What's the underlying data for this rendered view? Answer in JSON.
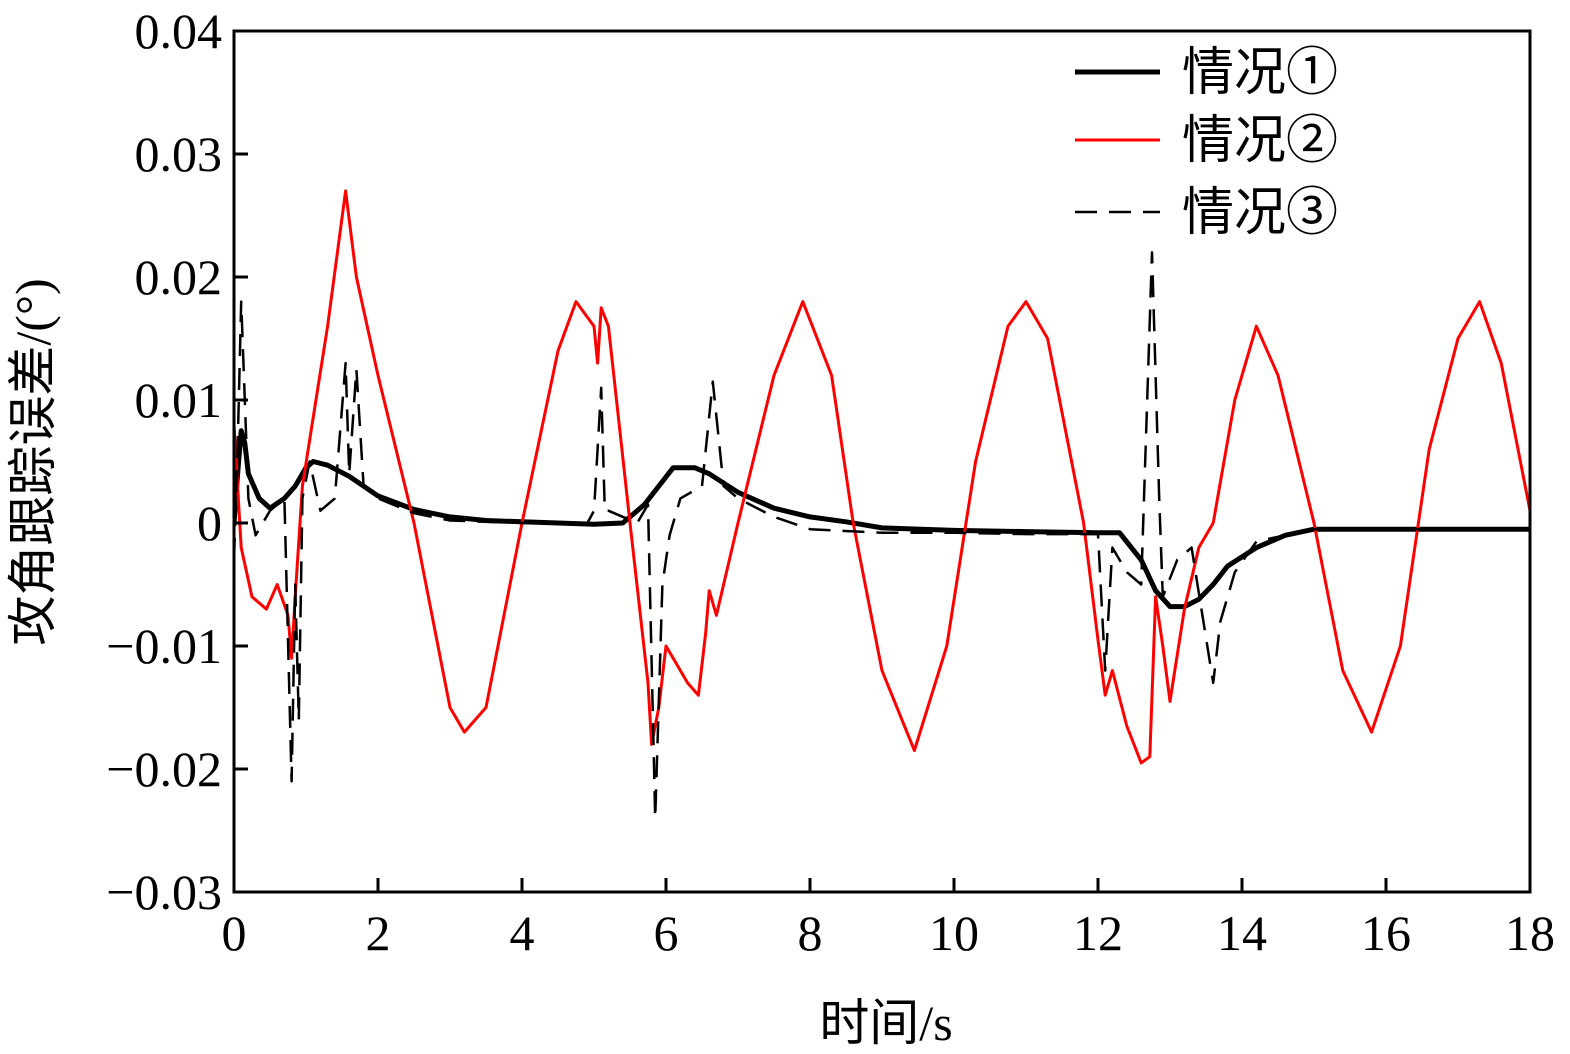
{
  "chart_data": {
    "type": "line",
    "xlabel": "时间/s",
    "ylabel": "攻角跟踪误差/(°)",
    "xlim": [
      0,
      18
    ],
    "ylim": [
      -0.03,
      0.04
    ],
    "grid": false,
    "legend_position": "top-right",
    "x_ticks": [
      "0",
      "2",
      "4",
      "6",
      "8",
      "10",
      "12",
      "14",
      "16",
      "18"
    ],
    "y_ticks": [
      "−0.03",
      "−0.02",
      "−0.01",
      "0",
      "0.01",
      "0.02",
      "0.03",
      "0.04"
    ],
    "series": [
      {
        "name": "情况①",
        "color": "#000000",
        "style": "solid-thick",
        "points": [
          [
            0,
            0
          ],
          [
            0.05,
            0.004
          ],
          [
            0.1,
            0.0075
          ],
          [
            0.15,
            0.0065
          ],
          [
            0.2,
            0.004
          ],
          [
            0.35,
            0.002
          ],
          [
            0.5,
            0.0012
          ],
          [
            0.7,
            0.002
          ],
          [
            0.85,
            0.003
          ],
          [
            1.0,
            0.0045
          ],
          [
            1.1,
            0.005
          ],
          [
            1.3,
            0.0047
          ],
          [
            1.6,
            0.0038
          ],
          [
            2.0,
            0.0022
          ],
          [
            2.5,
            0.0011
          ],
          [
            3.0,
            0.0005
          ],
          [
            3.5,
            0.0002
          ],
          [
            4.0,
            0.0001
          ],
          [
            4.5,
            0
          ],
          [
            5.0,
            -0.0001
          ],
          [
            5.4,
            0
          ],
          [
            5.7,
            0.0015
          ],
          [
            5.9,
            0.003
          ],
          [
            6.1,
            0.0045
          ],
          [
            6.4,
            0.0045
          ],
          [
            6.6,
            0.004
          ],
          [
            7.0,
            0.0025
          ],
          [
            7.5,
            0.0012
          ],
          [
            8.0,
            0.0005
          ],
          [
            8.5,
            0.0001
          ],
          [
            9.0,
            -0.0004
          ],
          [
            10,
            -0.0006
          ],
          [
            11,
            -0.0007
          ],
          [
            12,
            -0.0008
          ],
          [
            12.3,
            -0.0008
          ],
          [
            12.6,
            -0.003
          ],
          [
            12.8,
            -0.0055
          ],
          [
            13.0,
            -0.0068
          ],
          [
            13.2,
            -0.0068
          ],
          [
            13.4,
            -0.0062
          ],
          [
            13.6,
            -0.005
          ],
          [
            13.8,
            -0.0035
          ],
          [
            14.2,
            -0.002
          ],
          [
            14.6,
            -0.001
          ],
          [
            15,
            -0.0005
          ],
          [
            16,
            -0.0005
          ],
          [
            17,
            -0.0005
          ],
          [
            18,
            -0.0005
          ]
        ]
      },
      {
        "name": "情况②",
        "color": "#ff0000",
        "style": "solid",
        "points": [
          [
            0,
            0.008
          ],
          [
            0.1,
            -0.002
          ],
          [
            0.25,
            -0.006
          ],
          [
            0.45,
            -0.007
          ],
          [
            0.6,
            -0.005
          ],
          [
            0.75,
            -0.0075
          ],
          [
            0.8,
            -0.011
          ],
          [
            0.85,
            -0.006
          ],
          [
            0.95,
            0.003
          ],
          [
            1.3,
            0.016
          ],
          [
            1.55,
            0.027
          ],
          [
            1.7,
            0.02
          ],
          [
            2.0,
            0.012
          ],
          [
            2.5,
            0
          ],
          [
            3.0,
            -0.015
          ],
          [
            3.2,
            -0.017
          ],
          [
            3.5,
            -0.015
          ],
          [
            4.0,
            0
          ],
          [
            4.5,
            0.014
          ],
          [
            4.75,
            0.018
          ],
          [
            5.0,
            0.016
          ],
          [
            5.05,
            0.013
          ],
          [
            5.1,
            0.0175
          ],
          [
            5.2,
            0.016
          ],
          [
            5.5,
            0
          ],
          [
            5.75,
            -0.013
          ],
          [
            5.8,
            -0.018
          ],
          [
            5.9,
            -0.015
          ],
          [
            6.0,
            -0.01
          ],
          [
            6.1,
            -0.011
          ],
          [
            6.3,
            -0.013
          ],
          [
            6.45,
            -0.014
          ],
          [
            6.55,
            -0.009
          ],
          [
            6.6,
            -0.0055
          ],
          [
            6.7,
            -0.0075
          ],
          [
            7.0,
            0
          ],
          [
            7.5,
            0.012
          ],
          [
            7.9,
            0.018
          ],
          [
            8.3,
            0.012
          ],
          [
            8.6,
            0
          ],
          [
            9.0,
            -0.012
          ],
          [
            9.45,
            -0.0185
          ],
          [
            9.9,
            -0.01
          ],
          [
            10.3,
            0.005
          ],
          [
            10.75,
            0.016
          ],
          [
            11.0,
            0.018
          ],
          [
            11.3,
            0.015
          ],
          [
            11.8,
            0
          ],
          [
            12.0,
            -0.0095
          ],
          [
            12.1,
            -0.014
          ],
          [
            12.2,
            -0.012
          ],
          [
            12.4,
            -0.0165
          ],
          [
            12.6,
            -0.0195
          ],
          [
            12.72,
            -0.019
          ],
          [
            12.8,
            -0.006
          ],
          [
            12.9,
            -0.01
          ],
          [
            13.0,
            -0.0145
          ],
          [
            13.2,
            -0.007
          ],
          [
            13.4,
            -0.002
          ],
          [
            13.6,
            0
          ],
          [
            13.9,
            0.01
          ],
          [
            14.2,
            0.016
          ],
          [
            14.5,
            0.012
          ],
          [
            15.0,
            0
          ],
          [
            15.4,
            -0.012
          ],
          [
            15.8,
            -0.017
          ],
          [
            16.2,
            -0.01
          ],
          [
            16.6,
            0.006
          ],
          [
            17.0,
            0.015
          ],
          [
            17.3,
            0.018
          ],
          [
            17.6,
            0.013
          ],
          [
            18.0,
            0.001
          ]
        ]
      },
      {
        "name": "情况③",
        "color": "#000000",
        "style": "dashed",
        "points": [
          [
            0,
            -0.003
          ],
          [
            0.05,
            0.006
          ],
          [
            0.1,
            0.018
          ],
          [
            0.15,
            0.01
          ],
          [
            0.2,
            0.002
          ],
          [
            0.3,
            -0.001
          ],
          [
            0.5,
            0.001
          ],
          [
            0.7,
            0.002
          ],
          [
            0.8,
            -0.021
          ],
          [
            0.85,
            -0.005
          ],
          [
            0.9,
            -0.016
          ],
          [
            0.95,
            0.002
          ],
          [
            1.05,
            0.005
          ],
          [
            1.2,
            0.001
          ],
          [
            1.4,
            0.002
          ],
          [
            1.55,
            0.013
          ],
          [
            1.6,
            0.004
          ],
          [
            1.7,
            0.0125
          ],
          [
            1.8,
            0.003
          ],
          [
            2.0,
            0.002
          ],
          [
            2.5,
            0.0008
          ],
          [
            3.0,
            0.0002
          ],
          [
            4.0,
            0
          ],
          [
            4.9,
            -0.0001
          ],
          [
            5.0,
            0.001
          ],
          [
            5.1,
            0.011
          ],
          [
            5.15,
            0.001
          ],
          [
            5.2,
            0.001
          ],
          [
            5.6,
            0
          ],
          [
            5.75,
            0.0015
          ],
          [
            5.85,
            -0.024
          ],
          [
            5.95,
            -0.005
          ],
          [
            6.05,
            -0.001
          ],
          [
            6.2,
            0.002
          ],
          [
            6.5,
            0.003
          ],
          [
            6.65,
            0.0115
          ],
          [
            6.8,
            0.003
          ],
          [
            7.0,
            0.002
          ],
          [
            7.5,
            0.0005
          ],
          [
            8.0,
            -0.0005
          ],
          [
            9.0,
            -0.0008
          ],
          [
            10,
            -0.0008
          ],
          [
            11,
            -0.0009
          ],
          [
            12.0,
            -0.0009
          ],
          [
            12.1,
            -0.012
          ],
          [
            12.2,
            -0.002
          ],
          [
            12.4,
            -0.004
          ],
          [
            12.6,
            -0.005
          ],
          [
            12.75,
            0.022
          ],
          [
            12.85,
            0.002
          ],
          [
            12.9,
            -0.006
          ],
          [
            13.1,
            -0.003
          ],
          [
            13.3,
            -0.002
          ],
          [
            13.6,
            -0.013
          ],
          [
            13.7,
            -0.008
          ],
          [
            13.9,
            -0.004
          ],
          [
            14.2,
            -0.0015
          ],
          [
            14.6,
            -0.001
          ],
          [
            15.0,
            -0.0005
          ],
          [
            16,
            -0.0005
          ],
          [
            17,
            -0.0005
          ],
          [
            18,
            -0.0005
          ]
        ]
      }
    ]
  }
}
